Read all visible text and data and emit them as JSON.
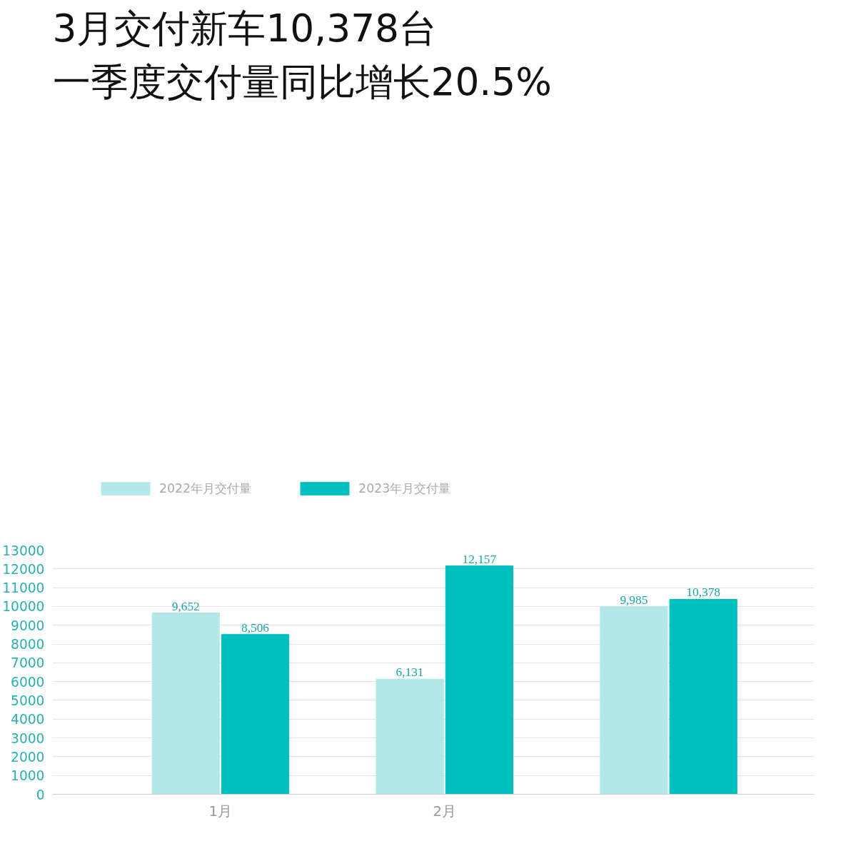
{
  "chart_data": {
    "type": "bar",
    "title": "3月交付新车10,378台",
    "subtitle": "一季度交付量同比增长20.5%",
    "categories": [
      "1月",
      "2月",
      null
    ],
    "series": [
      {
        "name": "2022年月交付量",
        "color": "#b3e8e8",
        "values": [
          9652,
          6131,
          9985
        ],
        "value_labels": [
          "9,652",
          "6,131",
          "9,985"
        ]
      },
      {
        "name": "2023年月交付量",
        "color": "#00bfbf",
        "values": [
          8506,
          12157,
          10378
        ],
        "value_labels": [
          "8,506",
          "12,157",
          "10,378"
        ]
      }
    ],
    "ylim": [
      0,
      13000
    ],
    "yticks": [
      0,
      1000,
      2000,
      3000,
      4000,
      5000,
      6000,
      7000,
      8000,
      9000,
      10000,
      11000,
      12000,
      13000
    ],
    "grid": "y",
    "legend": "top left"
  }
}
